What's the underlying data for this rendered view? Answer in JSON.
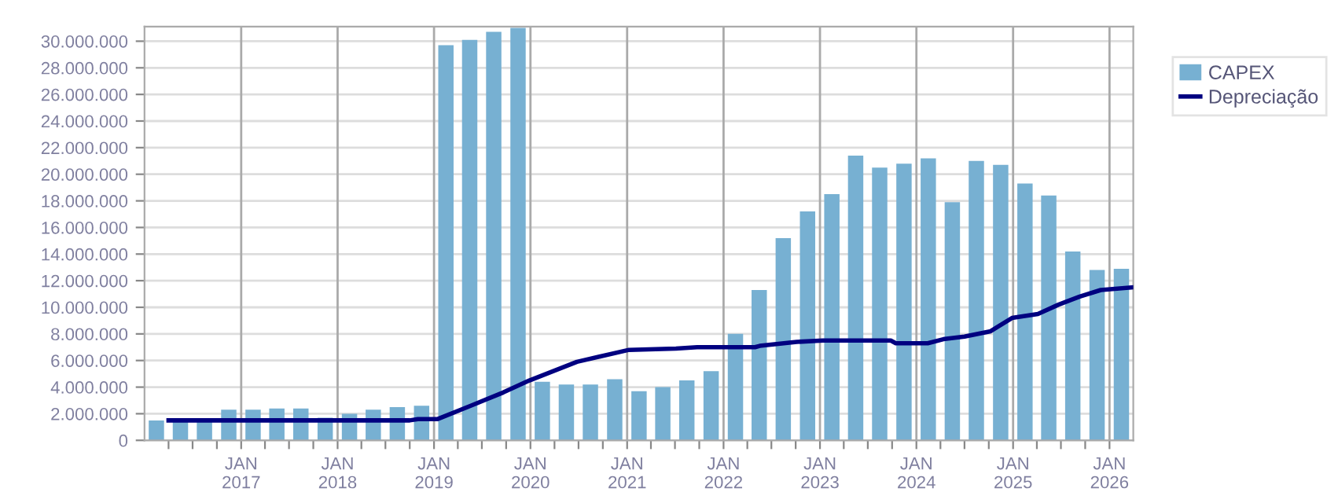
{
  "chart_data": {
    "type": "bar",
    "x": [
      "2016-02-15",
      "2016-05-16",
      "2016-08-15",
      "2016-11-15",
      "2017-02-15",
      "2017-05-16",
      "2017-08-15",
      "2017-11-15",
      "2018-02-15",
      "2018-05-16",
      "2018-08-15",
      "2018-11-15",
      "2019-02-15",
      "2019-05-16",
      "2019-08-15",
      "2019-11-15",
      "2020-02-15",
      "2020-05-16",
      "2020-08-15",
      "2020-11-15",
      "2021-02-15",
      "2021-05-16",
      "2021-08-15",
      "2021-11-15",
      "2022-02-15",
      "2022-05-16",
      "2022-08-15",
      "2022-11-15",
      "2023-02-15",
      "2023-05-16",
      "2023-08-15",
      "2023-11-15",
      "2024-02-15",
      "2024-05-16",
      "2024-08-15",
      "2024-11-15",
      "2025-02-15",
      "2025-05-16",
      "2025-08-15",
      "2025-11-15",
      "2026-02-15"
    ],
    "series": [
      {
        "name": "CAPEX",
        "color": "#77b0d2",
        "values": [
          1500000,
          1500000,
          1500000,
          2300000,
          2300000,
          2400000,
          2400000,
          1700000,
          2000000,
          2300000,
          2500000,
          2600000,
          29700000,
          30100000,
          30700000,
          31000000,
          4400000,
          4200000,
          4200000,
          4600000,
          3700000,
          4000000,
          4500000,
          5200000,
          8000000,
          11300000,
          15200000,
          17200000,
          18500000,
          21400000,
          20500000,
          20800000,
          21200000,
          17900000,
          21000000,
          20700000,
          19300000,
          18400000,
          14200000,
          12800000,
          12900000
        ]
      },
      {
        "name": "Depreciação",
        "type": "line",
        "color": "#000080",
        "x": [
          "2016-04-01",
          "2018-10-01",
          "2018-11-01",
          "2019-01-15",
          "2019-05-20",
          "2019-09-20",
          "2019-12-28",
          "2020-06-25",
          "2021-01-08",
          "2021-07-05",
          "2021-09-23",
          "2022-04-30",
          "2022-05-18",
          "2022-10-05",
          "2023-01-12",
          "2023-09-26",
          "2023-10-15",
          "2024-02-13",
          "2024-04-12",
          "2024-07-01",
          "2024-10-08",
          "2024-12-28",
          "2025-04-05",
          "2025-06-22",
          "2025-09-10",
          "2025-11-29",
          "2026-03-28"
        ],
        "values": [
          1500000,
          1500000,
          1600000,
          1600000,
          2600000,
          3600000,
          4500000,
          5900000,
          6800000,
          6900000,
          7000000,
          7000000,
          7100000,
          7400000,
          7500000,
          7500000,
          7300000,
          7300000,
          7600000,
          7800000,
          8200000,
          9200000,
          9500000,
          10200000,
          10800000,
          11300000,
          11500000
        ]
      }
    ],
    "xlim": [
      "2016-01-01",
      "2026-04-01"
    ],
    "xticks": [
      {
        "value": "2016-04-01",
        "label": null
      },
      {
        "value": "2016-07-01",
        "label": null
      },
      {
        "value": "2016-10-01",
        "label": null
      },
      {
        "value": "2017-01-01",
        "label": "JAN\n2017"
      },
      {
        "value": "2017-04-01",
        "label": null
      },
      {
        "value": "2017-07-01",
        "label": null
      },
      {
        "value": "2017-10-01",
        "label": null
      },
      {
        "value": "2018-01-01",
        "label": "JAN\n2018"
      },
      {
        "value": "2018-04-01",
        "label": null
      },
      {
        "value": "2018-07-01",
        "label": null
      },
      {
        "value": "2018-10-01",
        "label": null
      },
      {
        "value": "2019-01-01",
        "label": "JAN\n2019"
      },
      {
        "value": "2019-04-01",
        "label": null
      },
      {
        "value": "2019-07-01",
        "label": null
      },
      {
        "value": "2019-10-01",
        "label": null
      },
      {
        "value": "2020-01-01",
        "label": "JAN\n2020"
      },
      {
        "value": "2020-04-01",
        "label": null
      },
      {
        "value": "2020-07-01",
        "label": null
      },
      {
        "value": "2020-10-01",
        "label": null
      },
      {
        "value": "2021-01-01",
        "label": "JAN\n2021"
      },
      {
        "value": "2021-04-01",
        "label": null
      },
      {
        "value": "2021-07-01",
        "label": null
      },
      {
        "value": "2021-10-01",
        "label": null
      },
      {
        "value": "2022-01-01",
        "label": "JAN\n2022"
      },
      {
        "value": "2022-04-01",
        "label": null
      },
      {
        "value": "2022-07-01",
        "label": null
      },
      {
        "value": "2022-10-01",
        "label": null
      },
      {
        "value": "2023-01-01",
        "label": "JAN\n2023"
      },
      {
        "value": "2023-04-01",
        "label": null
      },
      {
        "value": "2023-07-01",
        "label": null
      },
      {
        "value": "2023-10-01",
        "label": null
      },
      {
        "value": "2024-01-01",
        "label": "JAN\n2024"
      },
      {
        "value": "2024-04-01",
        "label": null
      },
      {
        "value": "2024-07-01",
        "label": null
      },
      {
        "value": "2024-10-01",
        "label": null
      },
      {
        "value": "2025-01-01",
        "label": "JAN\n2025"
      },
      {
        "value": "2025-04-01",
        "label": null
      },
      {
        "value": "2025-07-01",
        "label": null
      },
      {
        "value": "2025-10-01",
        "label": null
      },
      {
        "value": "2026-01-01",
        "label": "JAN\n2026"
      }
    ],
    "ylim": [
      0,
      31100000
    ],
    "yticks": [
      0,
      {
        "value": 2000000,
        "label": "2.000.000"
      },
      {
        "value": 4000000,
        "label": "4.000.000"
      },
      {
        "value": 6000000,
        "label": "6.000.000"
      },
      {
        "value": 8000000,
        "label": "8.000.000"
      },
      {
        "value": 10000000,
        "label": "10.000.000"
      },
      {
        "value": 12000000,
        "label": "12.000.000"
      },
      {
        "value": 14000000,
        "label": "14.000.000"
      },
      {
        "value": 16000000,
        "label": "16.000.000"
      },
      {
        "value": 18000000,
        "label": "18.000.000"
      },
      {
        "value": 20000000,
        "label": "20.000.000"
      },
      {
        "value": 22000000,
        "label": "22.000.000"
      },
      {
        "value": 24000000,
        "label": "24.000.000"
      },
      {
        "value": 26000000,
        "label": "26.000.000"
      },
      {
        "value": 28000000,
        "label": "28.000.000"
      },
      {
        "value": 30000000,
        "label": "30.000.000"
      }
    ],
    "grid": true,
    "legend": "top right",
    "line_style": "solid",
    "marker": "none"
  }
}
